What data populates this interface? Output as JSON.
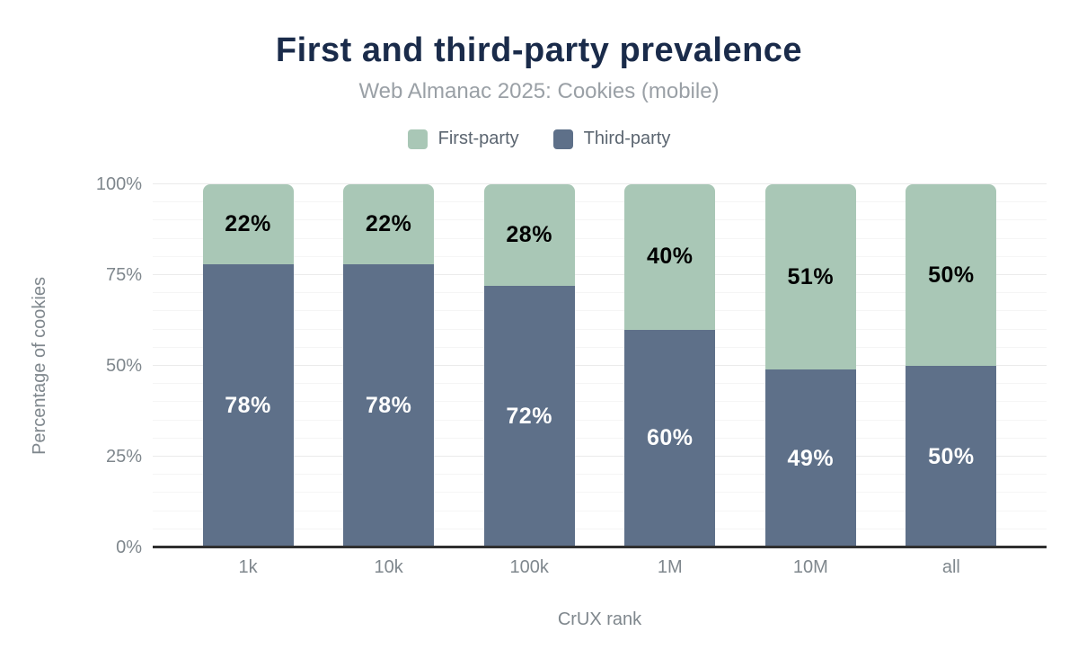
{
  "page": {
    "background": "#ffffff"
  },
  "header": {
    "title": "First and third-party prevalence",
    "subtitle": "Web Almanac 2025: Cookies (mobile)"
  },
  "legend": {
    "position": "top",
    "items": [
      {
        "label": "First-party",
        "color": "#a9c7b6"
      },
      {
        "label": "Third-party",
        "color": "#5e7089"
      }
    ]
  },
  "chart_data": {
    "type": "bar",
    "stacked": true,
    "title": "First and third-party prevalence",
    "subtitle": "Web Almanac 2025: Cookies (mobile)",
    "categories": [
      "1k",
      "10k",
      "100k",
      "1M",
      "10M",
      "all"
    ],
    "series": [
      {
        "name": "First-party",
        "color": "#a9c7b6",
        "label_color": "#000000",
        "values": [
          22,
          22,
          28,
          40,
          51,
          50
        ]
      },
      {
        "name": "Third-party",
        "color": "#5e7089",
        "label_color": "#ffffff",
        "values": [
          78,
          78,
          72,
          60,
          49,
          50
        ]
      }
    ],
    "data_label_format": "{value}%",
    "xlabel": "CrUX rank",
    "ylabel": "Percentage of cookies",
    "ylim": [
      0,
      100
    ],
    "yticks": [
      {
        "value": 0,
        "label": "0%"
      },
      {
        "value": 25,
        "label": "25%"
      },
      {
        "value": 50,
        "label": "50%"
      },
      {
        "value": 75,
        "label": "75%"
      },
      {
        "value": 100,
        "label": "100%"
      }
    ],
    "grid": {
      "on": true,
      "minor_step": 5,
      "major_step": 25,
      "minor_color": "#f5f5f5",
      "major_color": "#ebebeb"
    },
    "legend_position": "top"
  },
  "colors": {
    "title_text": "#1a2b4a",
    "subtitle_text": "#9aa0a6",
    "legend_text": "#5b6570",
    "tick_text": "#7f878d",
    "axis_line": "#2f2f2f",
    "first_party": "#a9c7b6",
    "third_party": "#5e7089"
  }
}
